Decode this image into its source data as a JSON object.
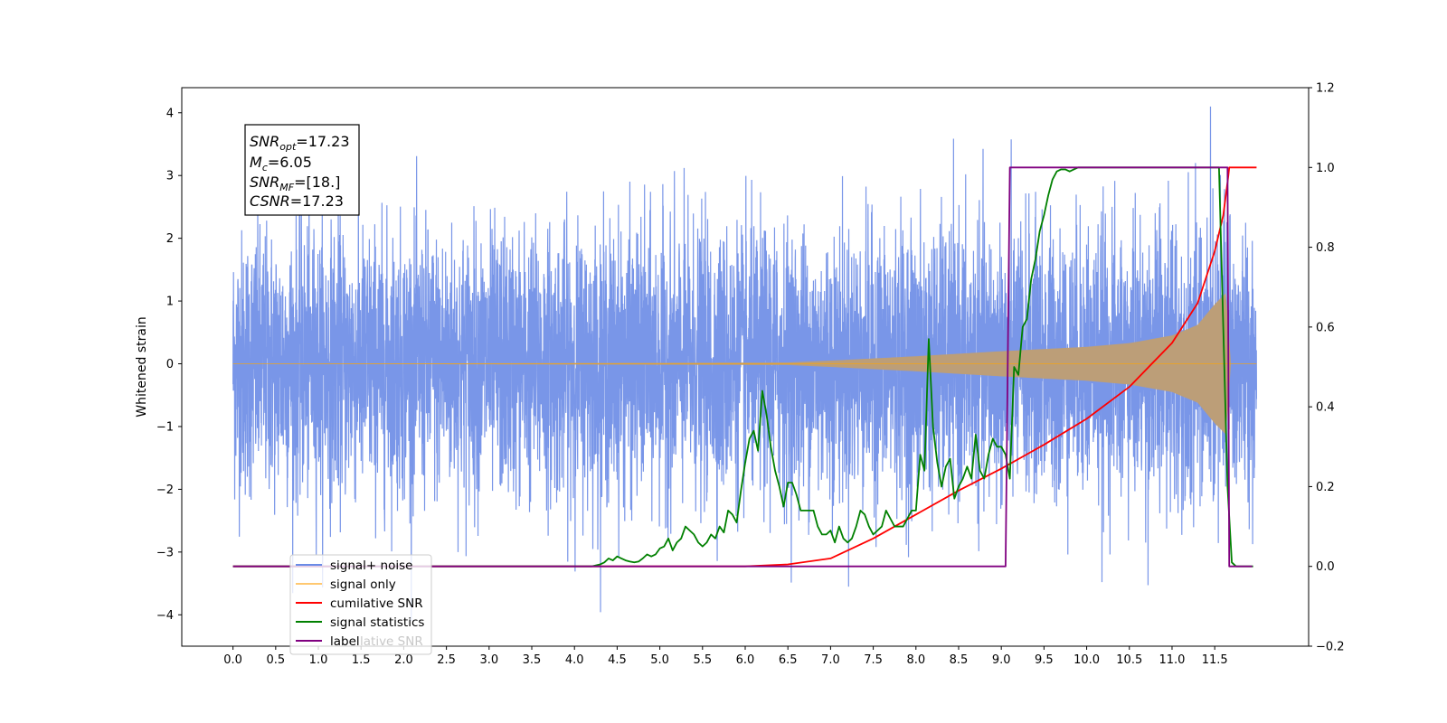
{
  "chart_data": {
    "type": "line",
    "ylabel": "Whitened strain",
    "xticks": [
      "0.0",
      "0.5",
      "1.0",
      "1.5",
      "2.0",
      "2.5",
      "3.0",
      "3.5",
      "4.0",
      "4.5",
      "5.0",
      "5.5",
      "6.0",
      "6.5",
      "7.0",
      "7.5",
      "8.0",
      "8.5",
      "9.0",
      "9.5",
      "10.0",
      "10.5",
      "11.0",
      "11.5"
    ],
    "yticks_left": [
      "4",
      "3",
      "2",
      "1",
      "0",
      "−1",
      "−2",
      "−3",
      "−4"
    ],
    "yticks_right": [
      "1.2",
      "1.0",
      "0.8",
      "0.6",
      "0.4",
      "0.2",
      "0.0",
      "−0.2"
    ],
    "xlim": [
      -0.6,
      12.6
    ],
    "ylim_left": [
      -4.5,
      4.4
    ],
    "ylim_right": [
      -0.2,
      1.2
    ],
    "info_box": {
      "snr_opt_label": "SNR",
      "snr_opt_sub": "opt",
      "snr_opt_value": "=17.23",
      "mc_label": "M",
      "mc_sub": "c",
      "mc_value": "=6.05",
      "snr_mf_label": "SNR",
      "snr_mf_sub": "MF",
      "snr_mf_value": "=[18.]",
      "csnr_label": "CSNR",
      "csnr_value": "=17.23"
    },
    "legend": {
      "placement": "lower-left",
      "entries": [
        "signal+ noise",
        "signal only",
        "cumilative SNR",
        "signal statistics",
        "label"
      ],
      "hidden_text": "lative SNR"
    },
    "colors": {
      "signal_noise": "#6a8be6",
      "signal_only": "#ffa500",
      "signal_fill": "#bc9e78",
      "cumulative": "#ff0000",
      "statistics": "#008000",
      "label": "#800080"
    },
    "series": [
      {
        "name": "signal+ noise",
        "axis": "left",
        "t_start": 0.0,
        "t_end": 11.99,
        "noise_sigma": 1.05,
        "max_abs": 4.1
      },
      {
        "name": "signal only",
        "axis": "left",
        "envelope": {
          "t": [
            0.0,
            6.5,
            7.0,
            8.0,
            9.0,
            10.0,
            10.5,
            11.0,
            11.3,
            11.5,
            11.65,
            11.67,
            11.99
          ],
          "amplitude": [
            0.0,
            0.02,
            0.05,
            0.12,
            0.2,
            0.27,
            0.33,
            0.45,
            0.62,
            0.95,
            1.15,
            0.0,
            0.0
          ]
        }
      },
      {
        "name": "cumilative SNR",
        "axis": "right",
        "x": [
          0.0,
          6.0,
          6.5,
          7.0,
          7.5,
          8.0,
          8.5,
          9.0,
          9.5,
          10.0,
          10.5,
          11.0,
          11.3,
          11.5,
          11.6,
          11.66,
          11.67,
          11.99
        ],
        "y": [
          0.0,
          0.0,
          0.005,
          0.02,
          0.07,
          0.13,
          0.19,
          0.245,
          0.305,
          0.37,
          0.45,
          0.56,
          0.66,
          0.79,
          0.88,
          0.98,
          1.0,
          1.0
        ]
      },
      {
        "name": "signal statistics",
        "axis": "right",
        "x": [
          0.0,
          3.9,
          4.0,
          4.2,
          4.3,
          4.35,
          4.4,
          4.45,
          4.5,
          4.55,
          4.6,
          4.65,
          4.7,
          4.75,
          4.8,
          4.85,
          4.9,
          4.95,
          5.0,
          5.05,
          5.1,
          5.15,
          5.2,
          5.25,
          5.3,
          5.35,
          5.4,
          5.45,
          5.5,
          5.55,
          5.6,
          5.65,
          5.7,
          5.75,
          5.8,
          5.85,
          5.9,
          5.95,
          6.0,
          6.05,
          6.1,
          6.15,
          6.2,
          6.25,
          6.3,
          6.35,
          6.4,
          6.45,
          6.5,
          6.55,
          6.6,
          6.65,
          6.7,
          6.75,
          6.8,
          6.85,
          6.9,
          6.95,
          7.0,
          7.05,
          7.1,
          7.15,
          7.2,
          7.25,
          7.3,
          7.35,
          7.4,
          7.45,
          7.5,
          7.55,
          7.6,
          7.65,
          7.7,
          7.75,
          7.8,
          7.85,
          7.9,
          7.95,
          8.0,
          8.05,
          8.1,
          8.15,
          8.2,
          8.25,
          8.3,
          8.35,
          8.4,
          8.45,
          8.5,
          8.55,
          8.6,
          8.65,
          8.7,
          8.75,
          8.8,
          8.85,
          8.9,
          8.95,
          9.0,
          9.05,
          9.1,
          9.15,
          9.2,
          9.25,
          9.3,
          9.35,
          9.4,
          9.45,
          9.5,
          9.55,
          9.6,
          9.65,
          9.7,
          9.75,
          9.8,
          9.85,
          9.9,
          10.0,
          10.1,
          10.2,
          10.5,
          11.0,
          11.5,
          11.55,
          11.6,
          11.65,
          11.7,
          11.75,
          11.8,
          11.85,
          11.9,
          11.95
        ],
        "y": [
          0.0,
          0.0,
          0.0,
          0.0,
          0.005,
          0.01,
          0.02,
          0.015,
          0.025,
          0.02,
          0.015,
          0.012,
          0.01,
          0.012,
          0.02,
          0.03,
          0.025,
          0.03,
          0.045,
          0.05,
          0.07,
          0.04,
          0.06,
          0.07,
          0.1,
          0.09,
          0.08,
          0.06,
          0.05,
          0.06,
          0.08,
          0.07,
          0.1,
          0.085,
          0.14,
          0.13,
          0.11,
          0.19,
          0.26,
          0.32,
          0.34,
          0.29,
          0.44,
          0.38,
          0.3,
          0.24,
          0.2,
          0.15,
          0.21,
          0.21,
          0.18,
          0.14,
          0.14,
          0.14,
          0.14,
          0.1,
          0.08,
          0.08,
          0.09,
          0.06,
          0.1,
          0.07,
          0.06,
          0.07,
          0.1,
          0.14,
          0.13,
          0.1,
          0.08,
          0.09,
          0.1,
          0.14,
          0.12,
          0.1,
          0.1,
          0.1,
          0.12,
          0.14,
          0.14,
          0.28,
          0.24,
          0.57,
          0.35,
          0.26,
          0.2,
          0.25,
          0.27,
          0.17,
          0.2,
          0.22,
          0.25,
          0.22,
          0.33,
          0.24,
          0.22,
          0.28,
          0.32,
          0.3,
          0.3,
          0.28,
          0.22,
          0.5,
          0.48,
          0.6,
          0.62,
          0.72,
          0.77,
          0.84,
          0.88,
          0.93,
          0.97,
          0.99,
          0.995,
          0.995,
          0.99,
          0.995,
          1.0,
          1.0,
          1.0,
          1.0,
          1.0,
          1.0,
          1.0,
          1.0,
          0.6,
          0.2,
          0.01,
          0.0,
          0.0,
          0.0,
          0.0,
          0.0
        ]
      },
      {
        "name": "label",
        "axis": "right",
        "x": [
          0.0,
          9.05,
          9.1,
          11.65,
          11.67,
          11.94
        ],
        "y": [
          0.0,
          0.0,
          1.0,
          1.0,
          0.0,
          0.0
        ]
      }
    ]
  }
}
